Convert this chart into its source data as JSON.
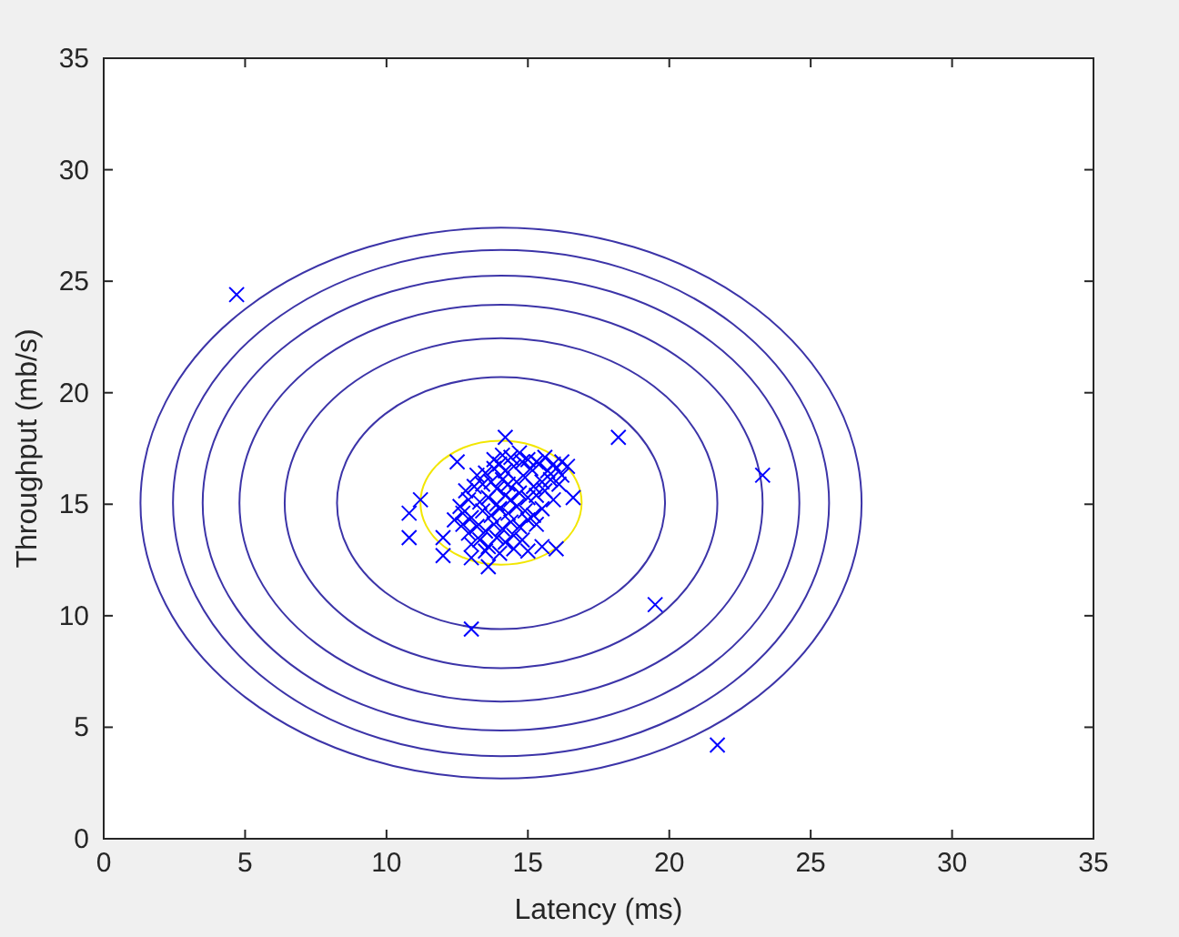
{
  "chart_data": {
    "type": "scatter",
    "xlabel": "Latency (ms)",
    "ylabel": "Throughput (mb/s)",
    "xlim": [
      0,
      35
    ],
    "ylim": [
      0,
      35
    ],
    "xticks": [
      0,
      5,
      10,
      15,
      20,
      25,
      30,
      35
    ],
    "yticks": [
      0,
      5,
      10,
      15,
      20,
      25,
      30,
      35
    ],
    "grid": false,
    "legend": false,
    "series": [
      {
        "marker": "cross",
        "color": "#0000ff",
        "x": [
          4.7,
          18.2,
          23.3,
          19.5,
          21.7,
          13.0,
          10.8,
          10.8,
          11.2,
          12.0,
          12.0,
          13.0,
          13.6,
          14.2,
          12.5,
          16.6,
          12.7,
          13.2,
          13.5,
          13.8,
          14.0,
          14.2,
          14.5,
          14.8,
          15.1,
          15.4,
          15.7,
          16.0,
          16.2,
          12.8,
          13.1,
          13.4,
          13.7,
          13.9,
          14.1,
          14.3,
          14.6,
          14.9,
          15.2,
          15.5,
          15.8,
          16.1,
          12.6,
          12.9,
          13.3,
          13.6,
          13.9,
          14.2,
          14.4,
          14.7,
          15.0,
          15.3,
          15.6,
          15.9,
          12.4,
          12.7,
          13.0,
          13.4,
          13.7,
          14.0,
          14.3,
          14.6,
          14.9,
          15.2,
          15.5,
          12.9,
          13.2,
          13.5,
          13.8,
          14.1,
          14.4,
          14.7,
          15.0,
          15.3,
          13.0,
          13.3,
          13.6,
          13.9,
          14.2,
          14.5,
          14.8,
          13.8,
          14.1,
          14.4,
          14.7,
          15.0,
          15.3,
          15.6,
          15.9,
          16.2,
          16.4,
          13.5,
          14.0,
          14.5,
          15.0,
          15.5,
          16.0
        ],
        "values": [
          24.4,
          18.0,
          16.3,
          10.5,
          4.2,
          9.4,
          14.6,
          13.5,
          15.2,
          13.5,
          12.7,
          12.6,
          12.2,
          18.0,
          16.9,
          15.3,
          14.1,
          16.3,
          16.4,
          16.6,
          16.8,
          16.5,
          16.7,
          16.9,
          16.6,
          16.8,
          16.5,
          16.6,
          16.3,
          15.6,
          15.8,
          15.9,
          16.0,
          15.7,
          16.1,
          15.9,
          16.0,
          16.2,
          15.8,
          16.0,
          16.1,
          15.9,
          14.9,
          15.2,
          15.1,
          15.3,
          15.0,
          15.4,
          15.2,
          15.5,
          15.3,
          15.4,
          15.6,
          15.2,
          14.3,
          14.6,
          14.4,
          14.7,
          14.5,
          14.8,
          14.6,
          14.9,
          14.7,
          14.5,
          14.8,
          13.7,
          14.0,
          13.8,
          14.1,
          13.9,
          14.2,
          14.0,
          14.3,
          14.1,
          13.2,
          13.4,
          13.1,
          13.5,
          13.3,
          13.6,
          13.4,
          17.0,
          17.2,
          17.1,
          17.3,
          17.0,
          16.9,
          17.1,
          16.8,
          16.9,
          16.7,
          12.9,
          12.8,
          13.0,
          12.9,
          13.1,
          13.0
        ]
      }
    ]
  }
}
